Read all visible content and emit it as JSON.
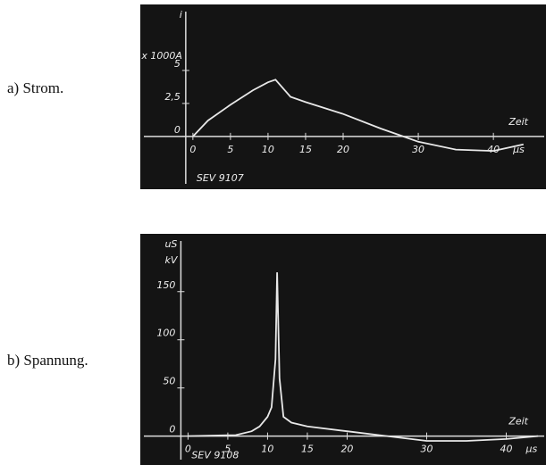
{
  "chart_data": [
    {
      "type": "line",
      "label": "a) Strom.",
      "ylabel": "i",
      "yunit": "x 1000A",
      "xlabel": "Zeit",
      "xunit": "µs",
      "annotation": "SEV 9107",
      "xlim": [
        -7,
        47
      ],
      "ylim": [
        -4,
        10
      ],
      "xticks": [
        0,
        5,
        10,
        15,
        20,
        30,
        40
      ],
      "yticks": [
        0,
        {
          "value": 2.5,
          "label": "2,5"
        },
        5
      ],
      "x": [
        0,
        2,
        5,
        8,
        10,
        11,
        13,
        15,
        20,
        25,
        28,
        30,
        35,
        40,
        44
      ],
      "series": [
        {
          "color": "#e8e8e8",
          "values": [
            0,
            1.2,
            2.4,
            3.5,
            4.1,
            4.3,
            3.0,
            2.6,
            1.7,
            0.6,
            0,
            -0.4,
            -1.0,
            -1.1,
            -0.6
          ]
        }
      ]
    },
    {
      "type": "line",
      "label": "b) Spannung.",
      "ylabel": "uS",
      "yunit": "kV",
      "xlabel": "Zeit",
      "xunit": "µs",
      "annotation": "SEV 9108",
      "xlim": [
        -6,
        45
      ],
      "ylim": [
        -30,
        210
      ],
      "xticks": [
        0,
        5,
        10,
        15,
        20,
        30,
        40
      ],
      "yticks": [
        0,
        50,
        100,
        150
      ],
      "x": [
        0,
        6,
        8,
        9,
        10,
        10.5,
        11,
        11.2,
        11.5,
        12,
        13,
        15,
        20,
        25,
        30,
        35,
        40,
        44
      ],
      "series": [
        {
          "color": "#e8e8e8",
          "values": [
            0,
            1,
            5,
            10,
            20,
            30,
            80,
            170,
            60,
            20,
            14,
            10,
            5,
            0,
            -5,
            -5,
            -3,
            0
          ]
        }
      ]
    }
  ]
}
